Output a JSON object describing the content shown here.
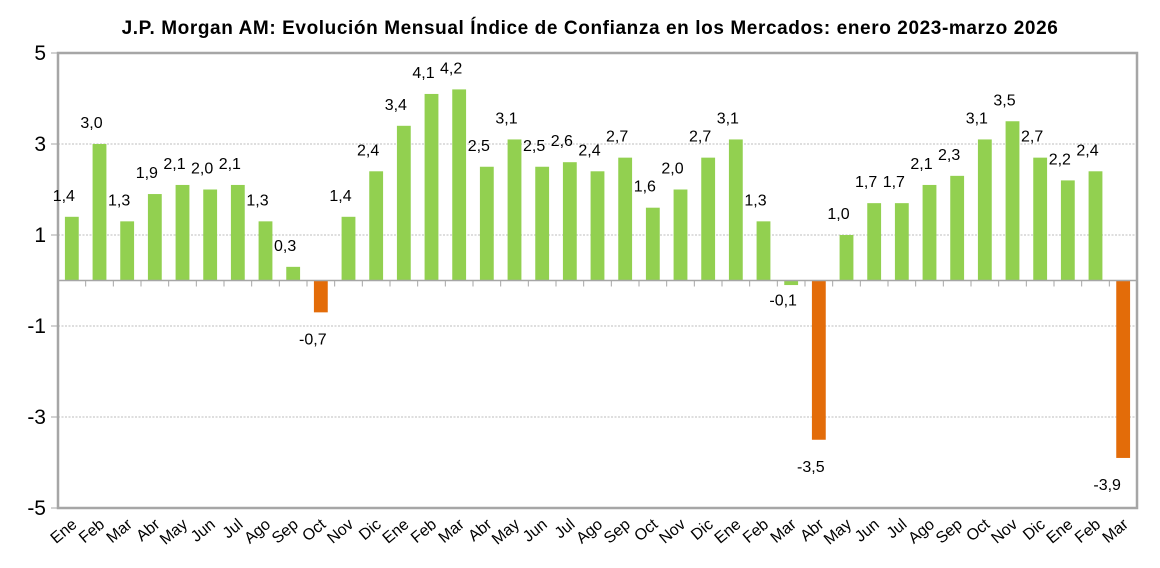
{
  "chart_data": {
    "type": "bar",
    "title": "J.P. Morgan AM: Evolución Mensual Índice de Confianza en los Mercados: enero 2023-marzo 2026",
    "xlabel": "",
    "ylabel": "",
    "ylim": [
      -5,
      5
    ],
    "yticks": [
      5,
      3,
      1,
      -1,
      -3,
      -5
    ],
    "ytick_labels": [
      "5",
      "3",
      "1",
      "-1",
      "-3",
      "-5"
    ],
    "grid": true,
    "legend": "none",
    "categories": [
      "Ene",
      "Feb",
      "Mar",
      "Abr",
      "May",
      "Jun",
      "Jul",
      "Ago",
      "Sep",
      "Oct",
      "Nov",
      "Dic",
      "Ene",
      "Feb",
      "Mar",
      "Abr",
      "May",
      "Jun",
      "Jul",
      "Ago",
      "Sep",
      "Oct",
      "Nov",
      "Dic",
      "Ene",
      "Feb",
      "Mar",
      "Abr",
      "May",
      "Jun",
      "Jul",
      "Ago",
      "Sep",
      "Oct",
      "Nov",
      "Dic",
      "Ene",
      "Feb",
      "Mar"
    ],
    "series": [
      {
        "name": "Índice de Confianza en los Mercados",
        "values": [
          1.4,
          3.0,
          1.3,
          1.9,
          2.1,
          2.0,
          2.1,
          1.3,
          0.3,
          -0.7,
          1.4,
          2.4,
          3.4,
          4.1,
          4.2,
          2.5,
          3.1,
          2.5,
          2.6,
          2.4,
          2.7,
          1.6,
          2.0,
          2.7,
          3.1,
          1.3,
          -0.1,
          -3.5,
          1.0,
          1.7,
          1.7,
          2.1,
          2.3,
          3.1,
          3.5,
          2.7,
          2.2,
          2.4,
          -3.9
        ],
        "data_labels": [
          "1,4",
          "3,0",
          "1,3",
          "1,9",
          "2,1",
          "2,0",
          "2,1",
          "1,3",
          "0,3",
          "-0,7",
          "1,4",
          "2,4",
          "3,4",
          "4,1",
          "4,2",
          "2,5",
          "3,1",
          "2,5",
          "2,6",
          "2,4",
          "2,7",
          "1,6",
          "2,0",
          "2,7",
          "3,1",
          "1,3",
          "-0,1",
          "-3,5",
          "1,0",
          "1,7",
          "1,7",
          "2,1",
          "2,3",
          "3,1",
          "3,5",
          "2,7",
          "2,2",
          "2,4",
          "-3,9"
        ],
        "bar_color_keys": [
          "g",
          "g",
          "g",
          "g",
          "g",
          "g",
          "g",
          "g",
          "g",
          "o",
          "g",
          "g",
          "g",
          "g",
          "g",
          "g",
          "g",
          "g",
          "g",
          "g",
          "g",
          "g",
          "g",
          "g",
          "g",
          "g",
          "g",
          "o",
          "g",
          "g",
          "g",
          "g",
          "g",
          "g",
          "g",
          "g",
          "g",
          "g",
          "o"
        ]
      }
    ],
    "colors": {
      "g": "#92d050",
      "o": "#e36c09"
    },
    "gridline_color": "#a6a6a6",
    "axis_color": "#a6a6a6"
  }
}
